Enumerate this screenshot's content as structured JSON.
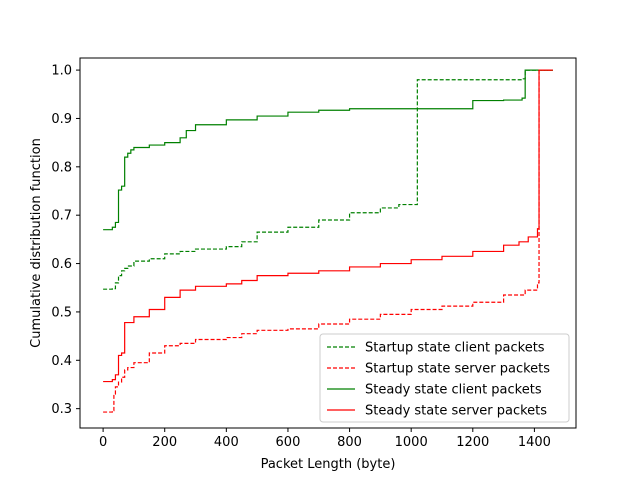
{
  "chart_data": {
    "type": "line",
    "title": "",
    "xlabel": "Packet Length (byte)",
    "ylabel": "Cumulative distribution function",
    "xlim": [
      -75,
      1535
    ],
    "ylim": [
      0.26,
      1.025
    ],
    "xticks": [
      0,
      200,
      400,
      600,
      800,
      1000,
      1200,
      1400
    ],
    "yticks": [
      0.3,
      0.4,
      0.5,
      0.6,
      0.7,
      0.8,
      0.9,
      1.0
    ],
    "xtick_labels": [
      "0",
      "200",
      "400",
      "600",
      "800",
      "1000",
      "1200",
      "1400"
    ],
    "ytick_labels": [
      "0.3",
      "0.4",
      "0.5",
      "0.6",
      "0.7",
      "0.8",
      "0.9",
      "1.0"
    ],
    "grid": false,
    "legend_position": "bottom-right",
    "series": [
      {
        "name": "Startup state client packets",
        "color": "#008000",
        "dash": "dashed",
        "x": [
          0,
          30,
          40,
          50,
          60,
          70,
          80,
          100,
          150,
          200,
          250,
          300,
          400,
          450,
          500,
          600,
          700,
          800,
          900,
          960,
          1020,
          1020,
          1200,
          1360,
          1370,
          1460
        ],
        "y": [
          0.547,
          0.548,
          0.56,
          0.575,
          0.585,
          0.59,
          0.595,
          0.605,
          0.61,
          0.62,
          0.625,
          0.63,
          0.635,
          0.645,
          0.665,
          0.675,
          0.69,
          0.705,
          0.715,
          0.722,
          0.727,
          0.98,
          0.98,
          0.982,
          1.0,
          1.0
        ]
      },
      {
        "name": "Startup state server packets",
        "color": "#ff0000",
        "dash": "dashed",
        "x": [
          0,
          30,
          35,
          40,
          50,
          60,
          70,
          80,
          100,
          150,
          200,
          250,
          300,
          400,
          450,
          500,
          600,
          700,
          800,
          900,
          1000,
          1100,
          1200,
          1300,
          1370,
          1410,
          1415,
          1460
        ],
        "y": [
          0.293,
          0.296,
          0.33,
          0.345,
          0.355,
          0.365,
          0.38,
          0.385,
          0.395,
          0.415,
          0.43,
          0.435,
          0.443,
          0.447,
          0.455,
          0.462,
          0.465,
          0.475,
          0.485,
          0.495,
          0.505,
          0.512,
          0.52,
          0.535,
          0.545,
          0.56,
          1.0,
          1.0
        ]
      },
      {
        "name": "Steady state client packets",
        "color": "#008000",
        "dash": "solid",
        "x": [
          0,
          30,
          40,
          50,
          60,
          70,
          80,
          90,
          100,
          150,
          200,
          250,
          270,
          300,
          400,
          500,
          600,
          700,
          800,
          1000,
          1200,
          1300,
          1360,
          1370,
          1460
        ],
        "y": [
          0.67,
          0.675,
          0.685,
          0.752,
          0.76,
          0.82,
          0.828,
          0.835,
          0.84,
          0.845,
          0.85,
          0.86,
          0.875,
          0.887,
          0.897,
          0.905,
          0.913,
          0.917,
          0.92,
          0.92,
          0.937,
          0.938,
          0.942,
          1.0,
          1.0
        ]
      },
      {
        "name": "Steady state server packets",
        "color": "#ff0000",
        "dash": "solid",
        "x": [
          0,
          30,
          40,
          50,
          60,
          70,
          100,
          150,
          200,
          250,
          300,
          400,
          450,
          500,
          600,
          700,
          800,
          900,
          1000,
          1100,
          1200,
          1300,
          1350,
          1380,
          1410,
          1415,
          1460
        ],
        "y": [
          0.356,
          0.36,
          0.37,
          0.41,
          0.415,
          0.478,
          0.49,
          0.505,
          0.53,
          0.545,
          0.553,
          0.558,
          0.565,
          0.575,
          0.58,
          0.585,
          0.593,
          0.6,
          0.608,
          0.615,
          0.625,
          0.638,
          0.645,
          0.655,
          0.672,
          1.0,
          1.0
        ]
      }
    ]
  }
}
